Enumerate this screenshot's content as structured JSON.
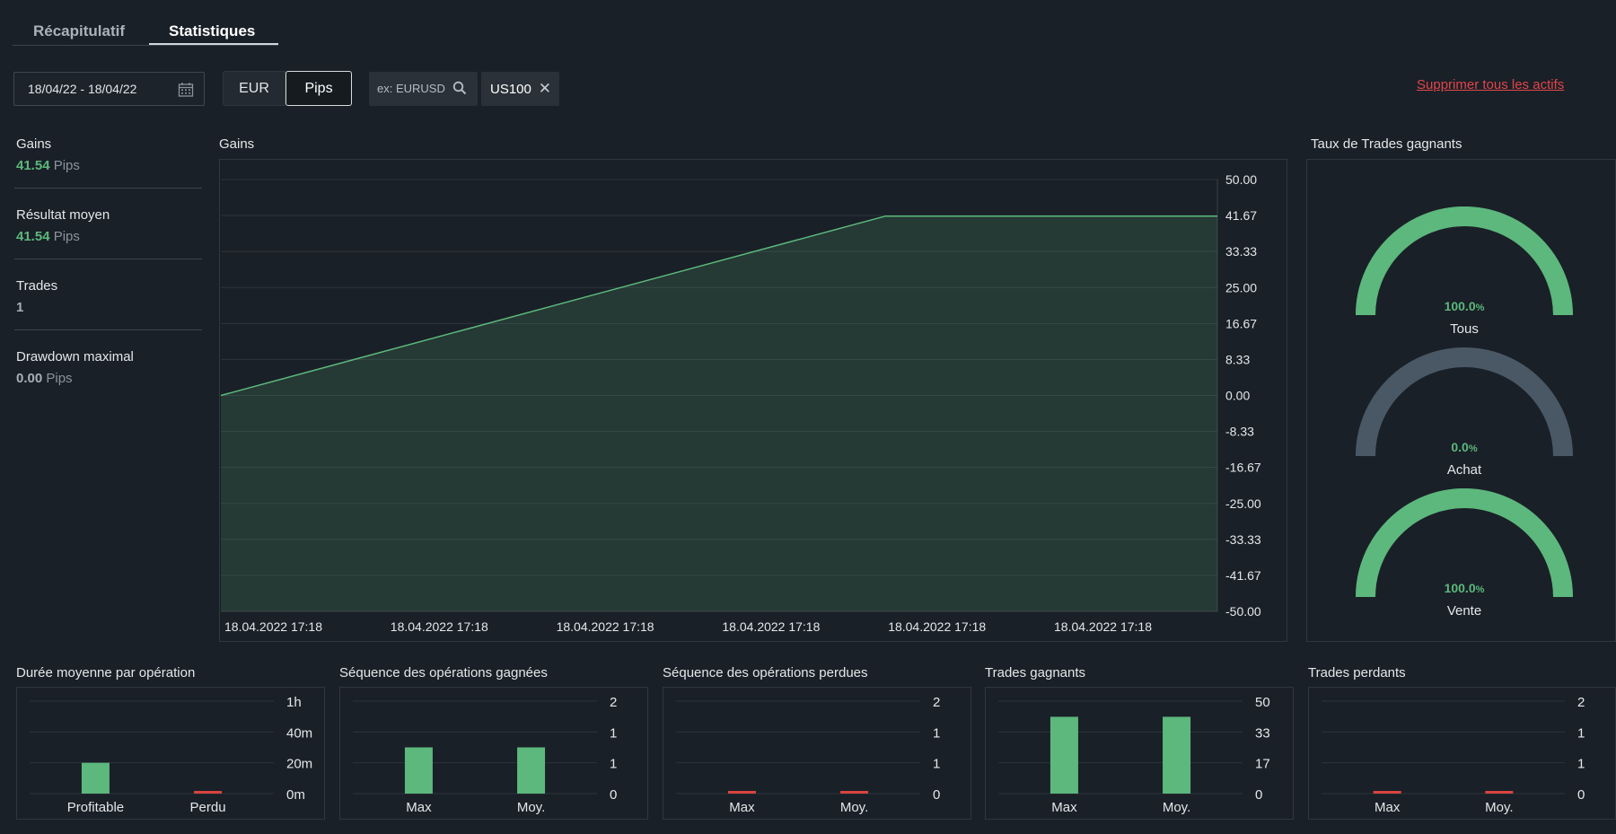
{
  "tabs": [
    {
      "label": "Récapitulatif",
      "active": false
    },
    {
      "label": "Statistiques",
      "active": true
    }
  ],
  "filters": {
    "date_range": "18/04/22 - 18/04/22",
    "unit_options": [
      "EUR",
      "Pips"
    ],
    "unit_selected": "Pips",
    "search_placeholder": "ex: EURUSD",
    "asset_chip": "US100",
    "remove_all": "Supprimer tous les actifs"
  },
  "stats": [
    {
      "label": "Gains",
      "value": "41.54",
      "unit": "Pips",
      "color": "#5cb87c"
    },
    {
      "label": "Résultat moyen",
      "value": "41.54",
      "unit": "Pips",
      "color": "#5cb87c"
    },
    {
      "label": "Trades",
      "value": "1",
      "unit": "",
      "color": "#a7afb7"
    },
    {
      "label": "Drawdown maximal",
      "value": "0.00",
      "unit": "Pips",
      "color": "#a7afb7"
    }
  ],
  "colors": {
    "profit": "#5cb87c",
    "loss": "#d9443f",
    "neutral_arc": "#4a5866",
    "grid": "#2d353c"
  },
  "gains_chart": {
    "title": "Gains",
    "y_ticks": [
      "50.00",
      "41.67",
      "33.33",
      "25.00",
      "16.67",
      "8.33",
      "0.00",
      "-8.33",
      "-16.67",
      "-25.00",
      "-33.33",
      "-41.67",
      "-50.00"
    ],
    "x_ticks": [
      "18.04.2022 17:18",
      "18.04.2022 17:18",
      "18.04.2022 17:18",
      "18.04.2022 17:18",
      "18.04.2022 17:18",
      "18.04.2022 17:18"
    ]
  },
  "win_rate": {
    "title": "Taux de Trades gagnants",
    "gauges": [
      {
        "label": "Tous",
        "value": "100.0",
        "unit": "%",
        "fraction": 1.0
      },
      {
        "label": "Achat",
        "value": "0.0",
        "unit": "%",
        "fraction": 0.0
      },
      {
        "label": "Vente",
        "value": "100.0",
        "unit": "%",
        "fraction": 1.0
      }
    ]
  },
  "chart_data": [
    {
      "type": "area",
      "title": "Gains",
      "x": [
        "18.04.2022 17:18",
        "18.04.2022 17:18",
        "18.04.2022 17:18"
      ],
      "series": [
        {
          "values": [
            0,
            41.54,
            41.54
          ]
        }
      ],
      "ylim": [
        -50,
        50
      ],
      "grid": true
    },
    {
      "type": "bar",
      "title": "Durée moyenne par opération",
      "categories": [
        "Profitable",
        "Perdu"
      ],
      "values": [
        20,
        0
      ],
      "ylim": [
        0,
        60
      ],
      "y_ticks": [
        "1h",
        "40m",
        "20m",
        "0m"
      ]
    },
    {
      "type": "bar",
      "title": "Séquence des opérations gagnées",
      "categories": [
        "Max",
        "Moy."
      ],
      "values": [
        1,
        1
      ],
      "ylim": [
        0,
        2
      ],
      "y_ticks": [
        "2",
        "1",
        "1",
        "0"
      ]
    },
    {
      "type": "bar",
      "title": "Séquence des opérations perdues",
      "categories": [
        "Max",
        "Moy."
      ],
      "values": [
        0,
        0
      ],
      "ylim": [
        0,
        2
      ],
      "y_ticks": [
        "2",
        "1",
        "1",
        "0"
      ]
    },
    {
      "type": "bar",
      "title": "Trades gagnants",
      "categories": [
        "Max",
        "Moy."
      ],
      "values": [
        41.54,
        41.54
      ],
      "ylim": [
        0,
        50
      ],
      "y_ticks": [
        "50",
        "33",
        "17",
        "0"
      ]
    },
    {
      "type": "bar",
      "title": "Trades perdants",
      "categories": [
        "Max",
        "Moy."
      ],
      "values": [
        0,
        0
      ],
      "ylim": [
        0,
        2
      ],
      "y_ticks": [
        "2",
        "1",
        "1",
        "0"
      ]
    }
  ]
}
